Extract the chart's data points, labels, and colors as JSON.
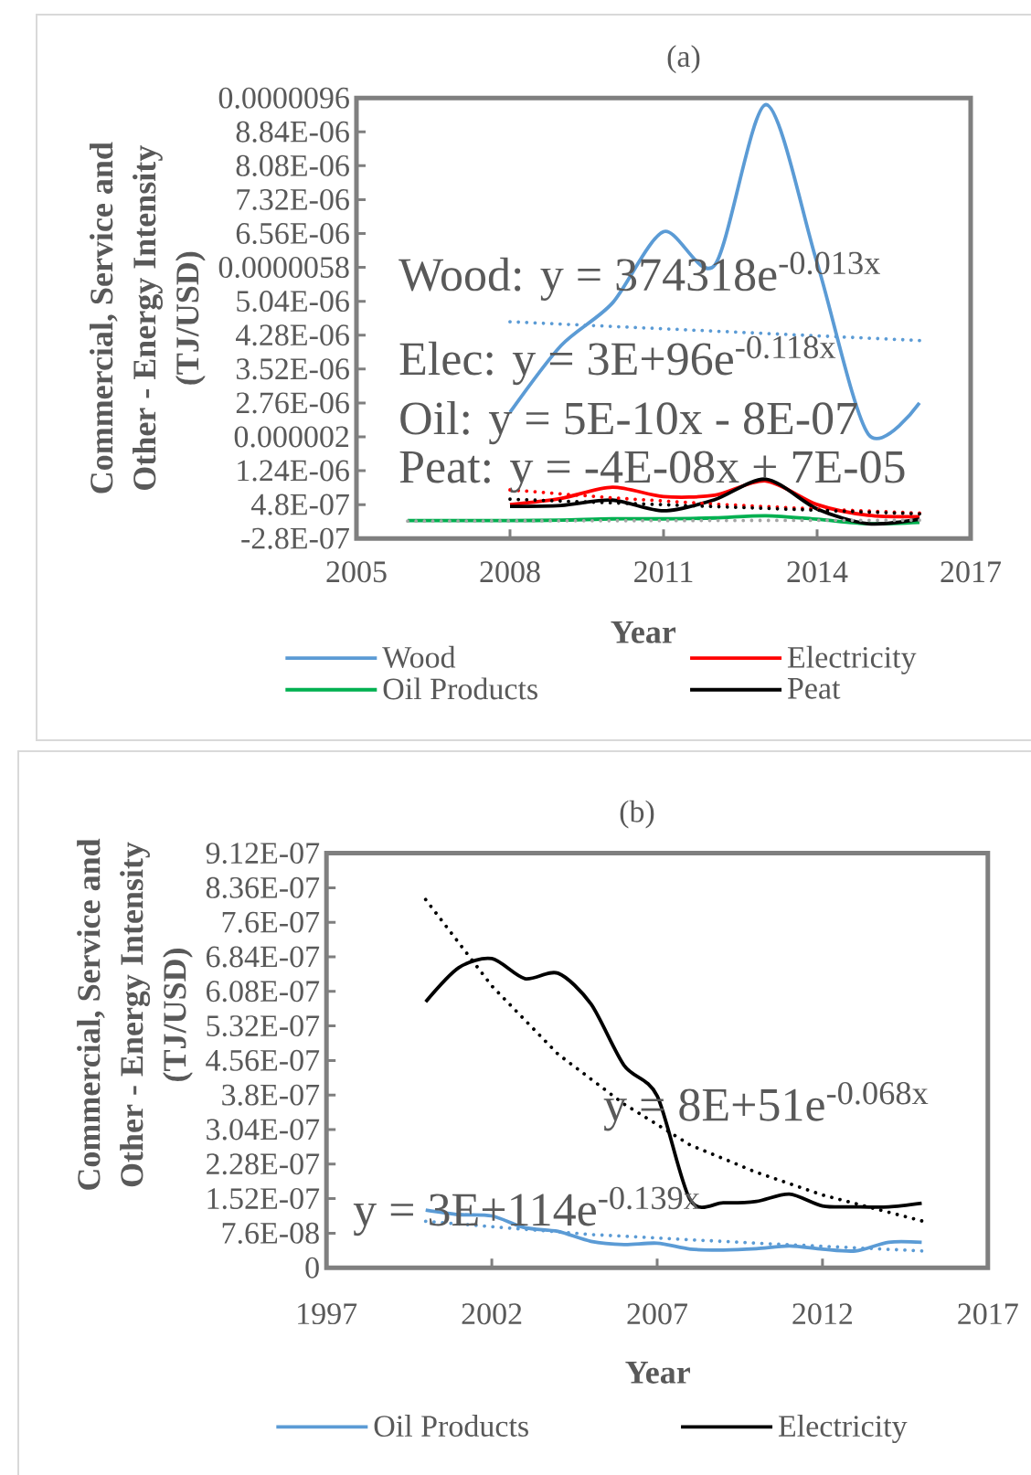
{
  "chart_data": [
    {
      "type": "line",
      "title": "(a)",
      "xlabel": "Year",
      "ylabel": "Commercial, Service and Other - Energy Intensity (TJ/USD)",
      "xlim": [
        2005,
        2017
      ],
      "xticks": [
        2005,
        2008,
        2011,
        2014,
        2017
      ],
      "ylim": [
        -2.8e-07,
        9.6e-06
      ],
      "yticks": [
        {
          "value": -2.8e-07,
          "label": "-2.8E-07"
        },
        {
          "value": 4.8e-07,
          "label": "4.8E-07"
        },
        {
          "value": 1.24e-06,
          "label": "1.24E-06"
        },
        {
          "value": 2e-06,
          "label": "0.000002"
        },
        {
          "value": 2.76e-06,
          "label": "2.76E-06"
        },
        {
          "value": 3.52e-06,
          "label": "3.52E-06"
        },
        {
          "value": 4.28e-06,
          "label": "4.28E-06"
        },
        {
          "value": 5.04e-06,
          "label": "5.04E-06"
        },
        {
          "value": 5.8e-06,
          "label": "0.0000058"
        },
        {
          "value": 6.56e-06,
          "label": "6.56E-06"
        },
        {
          "value": 7.32e-06,
          "label": "7.32E-06"
        },
        {
          "value": 8.08e-06,
          "label": "8.08E-06"
        },
        {
          "value": 8.84e-06,
          "label": "8.84E-06"
        },
        {
          "value": 9.6e-06,
          "label": "0.0000096"
        }
      ],
      "legend": "bottom",
      "series": [
        {
          "name": "Wood",
          "color": "#5b9bd5",
          "x": [
            2008,
            2009,
            2010,
            2011,
            2012,
            2013,
            2014,
            2015,
            2016
          ],
          "values": [
            2.55e-06,
            4.05e-06,
            5e-06,
            6.6e-06,
            5.85e-06,
            9.45e-06,
            5.9e-06,
            2.06e-06,
            2.76e-06
          ]
        },
        {
          "name": "Electricity",
          "color": "#ff0000",
          "x": [
            2008,
            2009,
            2010,
            2011,
            2012,
            2013,
            2014,
            2015,
            2016
          ],
          "values": [
            4.8e-07,
            6.2e-07,
            8.7e-07,
            6.6e-07,
            6.9e-07,
            1.01e-06,
            4.8e-07,
            2.4e-07,
            2.1e-07
          ]
        },
        {
          "name": "Oil Products",
          "color": "#00b050",
          "x": [
            2006,
            2007,
            2008,
            2009,
            2010,
            2011,
            2012,
            2013,
            2014,
            2015,
            2016
          ],
          "values": [
            1.2e-07,
            1.2e-07,
            1.2e-07,
            1.3e-07,
            1.6e-07,
            1.6e-07,
            1.8e-07,
            2.3e-07,
            1.5e-07,
            5e-08,
            8e-08
          ]
        },
        {
          "name": "Peat",
          "color": "#000000",
          "x": [
            2008,
            2009,
            2010,
            2011,
            2012,
            2013,
            2014,
            2015,
            2016
          ],
          "values": [
            4.4e-07,
            4.6e-07,
            5.8e-07,
            3.4e-07,
            5.9e-07,
            1.05e-06,
            3.8e-07,
            5e-08,
            1.5e-07
          ]
        },
        {
          "color": "#5b9bd5",
          "line_style": "dotted",
          "x": [
            2008,
            2016
          ],
          "values": [
            4.58e-06,
            4.16e-06
          ]
        },
        {
          "color": "#ff0000",
          "line_style": "dotted",
          "x": [
            2008,
            2010,
            2012,
            2014,
            2016
          ],
          "values": [
            8.1e-07,
            6.3e-07,
            4.9e-07,
            3.8e-07,
            2.9e-07
          ]
        },
        {
          "color": "#a5a5a5",
          "line_style": "dotted",
          "x": [
            2006,
            2016
          ],
          "values": [
            1.1e-07,
            1.3e-07
          ]
        },
        {
          "color": "#000000",
          "line_style": "dotted",
          "x": [
            2008,
            2016
          ],
          "values": [
            6e-07,
            2.7e-07
          ]
        }
      ],
      "annotations": [
        "Wood: y = 374318e$^{-0.013x}$",
        "Elec: y = 3E+96e$^{-0.118x}$",
        "Oil: y = 5E-10x - 8E-07",
        "Peat: y = -4E-08x + 7E-05"
      ]
    },
    {
      "type": "line",
      "title": "(b)",
      "xlabel": "Year",
      "ylabel": "Commercial, Service and Other - Energy Intensity (TJ/USD)",
      "xlim": [
        1997,
        2017
      ],
      "xticks": [
        1997,
        2002,
        2007,
        2012,
        2017
      ],
      "ylim": [
        0,
        9.12e-07
      ],
      "yticks": [
        0,
        {
          "value": 7.6e-08,
          "label": "7.6E-08"
        },
        {
          "value": 1.52e-07,
          "label": "1.52E-07"
        },
        {
          "value": 2.28e-07,
          "label": "2.28E-07"
        },
        {
          "value": 3.04e-07,
          "label": "3.04E-07"
        },
        {
          "value": 3.8e-07,
          "label": "3.8E-07"
        },
        {
          "value": 4.56e-07,
          "label": "4.56E-07"
        },
        {
          "value": 5.32e-07,
          "label": "5.32E-07"
        },
        {
          "value": 6.08e-07,
          "label": "6.08E-07"
        },
        {
          "value": 6.84e-07,
          "label": "6.84E-07"
        },
        {
          "value": 7.6e-07,
          "label": "7.6E-07"
        },
        {
          "value": 8.36e-07,
          "label": "8.36E-07"
        },
        {
          "value": 9.12e-07,
          "label": "9.12E-07"
        }
      ],
      "legend": "bottom",
      "series": [
        {
          "name": "Oil Products",
          "color": "#5b9bd5",
          "x": [
            2000,
            2001,
            2002,
            2003,
            2004,
            2005,
            2006,
            2007,
            2008,
            2009,
            2010,
            2011,
            2012,
            2013,
            2014,
            2015
          ],
          "values": [
            1.27e-07,
            1.17e-07,
            1.14e-07,
            8.8e-08,
            8e-08,
            5.8e-08,
            5.1e-08,
            5.4e-08,
            4.1e-08,
            3.9e-08,
            4.2e-08,
            4.8e-08,
            4.1e-08,
            3.7e-08,
            5.6e-08,
            5.6e-08
          ]
        },
        {
          "name": "Electricity",
          "color": "#000000",
          "x": [
            2000,
            2001,
            2002,
            2003,
            2004,
            2005,
            2006,
            2007,
            2008,
            2009,
            2010,
            2011,
            2012,
            2013,
            2014,
            2015
          ],
          "values": [
            5.85e-07,
            6.6e-07,
            6.8e-07,
            6.36e-07,
            6.48e-07,
            5.8e-07,
            4.45e-07,
            3.78e-07,
            1.49e-07,
            1.43e-07,
            1.46e-07,
            1.62e-07,
            1.36e-07,
            1.34e-07,
            1.34e-07,
            1.42e-07
          ]
        },
        {
          "color": "#000000",
          "line_style": "dotted",
          "x": [
            2000,
            2002,
            2004,
            2006,
            2008,
            2010,
            2012,
            2015
          ],
          "values": [
            8.1e-07,
            6.2e-07,
            4.7e-07,
            3.6e-07,
            2.7e-07,
            2.1e-07,
            1.6e-07,
            1.03e-07
          ]
        },
        {
          "color": "#5b9bd5",
          "line_style": "dotted",
          "x": [
            2000,
            2005,
            2010,
            2015
          ],
          "values": [
            1.02e-07,
            7.3e-08,
            5.4e-08,
            3.7e-08
          ]
        }
      ],
      "annotations": [
        "y = 8E+51e$^{-0.068x}$",
        "y = 3E+114e$^{-0.139x}$"
      ]
    }
  ]
}
